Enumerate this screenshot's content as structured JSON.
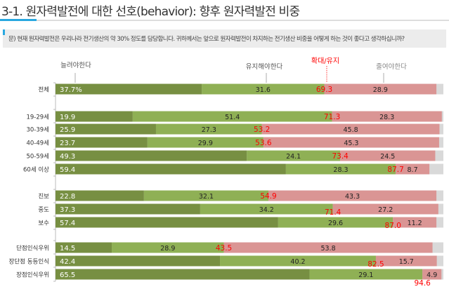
{
  "header": {
    "title": "3-1. 원자력발전에 대한 선호(behavior): 향후 원자력발전 비중"
  },
  "question": "문) 현재 원자력발전은 우리나라 전기생산의 약 30% 정도를 담당합니다. 귀하께서는 앞으로 원자력발전이 차지하는 전기생산 비중을 어떻게 하는 것이 좋다고 생각하십니까?",
  "chart_data": {
    "type": "bar",
    "orientation": "horizontal-stacked",
    "xlim": [
      0,
      100
    ],
    "legend_labels": {
      "increase": "늘려야한다",
      "maintain": "유지해야한다",
      "total": "확대/유지",
      "decrease": "줄여야한다"
    },
    "colors": {
      "increase": "#778f42",
      "maintain": "#8fb055",
      "decrease": "#da9594",
      "other": "#d9d9d9",
      "total": "#ff0000"
    },
    "categories": [
      "전체",
      "19-29세",
      "30-39세",
      "40-49세",
      "50-59세",
      "60세 이상",
      "진보",
      "중도",
      "보수",
      "단점인식우위",
      "장단점 동등인식",
      "장점인식우위"
    ],
    "groups": [
      [
        0
      ],
      [
        1,
        2,
        3,
        4,
        5
      ],
      [
        6,
        7,
        8
      ],
      [
        9,
        10,
        11
      ]
    ],
    "series": [
      {
        "name": "늘려야한다",
        "values": [
          "37.7%",
          "19.9",
          "25.9",
          "23.7",
          "49.3",
          "59.4",
          "22.8",
          "37.3",
          "57.4",
          "14.5",
          "42.4",
          "65.5"
        ]
      },
      {
        "name": "유지해야한다",
        "values": [
          "31.6",
          "51.4",
          "27.3",
          "29.9",
          "24.1",
          "28.3",
          "32.1",
          "34.2",
          "29.6",
          "28.9",
          "40.2",
          "29.1"
        ]
      },
      {
        "name": "확대/유지",
        "values": [
          "69.3",
          "71.3",
          "53.2",
          "53.6",
          "73.4",
          "87.7",
          "54.9",
          "71.4",
          "87.0",
          "43.5",
          "82.5",
          "94.6"
        ]
      },
      {
        "name": "줄여야한다",
        "values": [
          "28.9",
          "28.3",
          "45.8",
          "45.3",
          "24.5",
          "8.7",
          "43.3",
          "27.2",
          "11.2",
          "53.8",
          "15.7",
          "4.9"
        ]
      }
    ]
  }
}
